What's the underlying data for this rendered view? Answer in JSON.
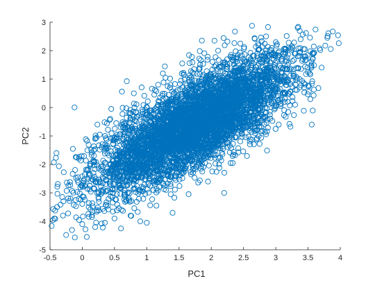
{
  "chart_data": {
    "type": "scatter",
    "title": "",
    "xlabel": "PC1",
    "ylabel": "PC2",
    "xlim": [
      -0.5,
      4
    ],
    "ylim": [
      -5,
      3
    ],
    "xticks": [
      "-0.5",
      "0",
      "0.5",
      "1",
      "1.5",
      "2",
      "2.5",
      "3",
      "3.5",
      "4"
    ],
    "yticks": [
      "-5",
      "-4",
      "-3",
      "-2",
      "-1",
      "0",
      "1",
      "2",
      "3"
    ],
    "grid": false,
    "legend": "none",
    "marker": "open-circle",
    "color": "#0072BD",
    "series": [
      {
        "points": [
          [
            3.8,
            2.45
          ],
          [
            2.88,
            2.83
          ],
          [
            -0.42,
            -3.62
          ],
          [
            -0.4,
            -1.6
          ],
          [
            -0.25,
            -4.48
          ],
          [
            -0.22,
            -3.72
          ],
          [
            -0.1,
            -3.25
          ],
          [
            0.0,
            -4.1
          ],
          [
            0.05,
            -4.28
          ],
          [
            0.07,
            -4.55
          ],
          [
            0.08,
            -1.5
          ],
          [
            0.12,
            -2.05
          ],
          [
            0.15,
            -3.85
          ],
          [
            0.2,
            -1.1
          ],
          [
            0.3,
            -4.08
          ],
          [
            0.45,
            -0.05
          ],
          [
            0.6,
            -4.25
          ],
          [
            0.75,
            -3.8
          ],
          [
            0.8,
            0.5
          ],
          [
            1.0,
            -4.05
          ],
          [
            1.25,
            1.2
          ],
          [
            1.4,
            -3.7
          ],
          [
            1.55,
            1.55
          ],
          [
            1.7,
            1.78
          ],
          [
            2.2,
            -3.0
          ],
          [
            2.25,
            2.32
          ],
          [
            2.45,
            2.25
          ],
          [
            2.6,
            -1.3
          ],
          [
            2.85,
            2.5
          ],
          [
            3.0,
            2.3
          ],
          [
            3.2,
            2.28
          ],
          [
            3.3,
            0.1
          ],
          [
            3.45,
            2.05
          ],
          [
            3.5,
            1.25
          ],
          [
            3.55,
            1.45
          ],
          [
            3.42,
            1.7
          ],
          [
            3.3,
            1.9
          ],
          [
            2.05,
            2.35
          ],
          [
            1.45,
            -2.55
          ],
          [
            1.8,
            -2.0
          ],
          [
            0.35,
            -4.05
          ],
          [
            0.5,
            -3.9
          ],
          [
            0.9,
            -4.0
          ],
          [
            1.15,
            -3.45
          ],
          [
            0.2,
            -4.2
          ],
          [
            -0.05,
            -3.95
          ],
          [
            0.1,
            -3.5
          ],
          [
            0.25,
            -3.15
          ],
          [
            1.95,
            -2.6
          ],
          [
            2.3,
            -1.95
          ]
        ]
      }
    ]
  }
}
